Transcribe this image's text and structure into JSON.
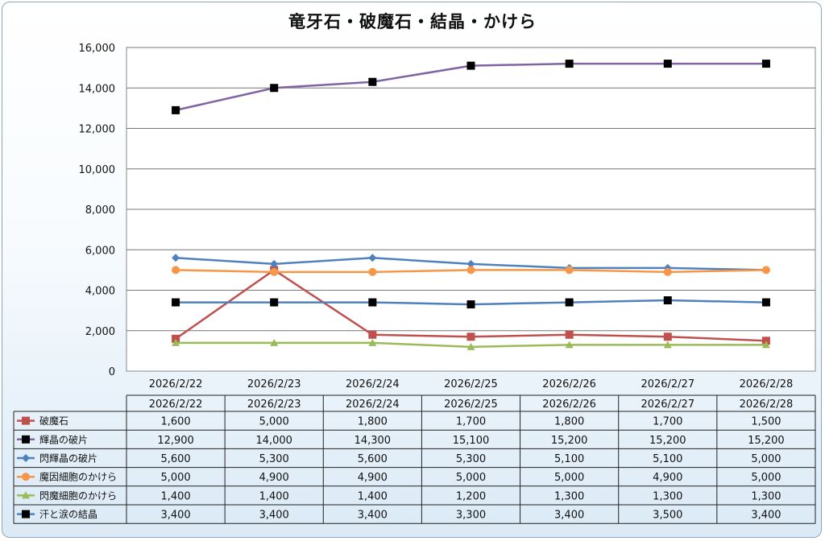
{
  "chart_data": {
    "type": "line",
    "title": "竜牙石・破魔石・結晶・かけら",
    "categories": [
      "2026/2/22",
      "2026/2/23",
      "2026/2/24",
      "2026/2/25",
      "2026/2/26",
      "2026/2/27",
      "2026/2/28"
    ],
    "y_tick_labels": [
      "0",
      "2,000",
      "4,000",
      "6,000",
      "8,000",
      "10,000",
      "12,000",
      "14,000",
      "16,000"
    ],
    "ylim": [
      0,
      16000
    ],
    "grid": true,
    "legend": "data-table-bottom",
    "series": [
      {
        "name": "破魔石",
        "color": "#c0504d",
        "marker": "square",
        "values": [
          1600,
          5000,
          1800,
          1700,
          1800,
          1700,
          1500
        ],
        "labels": [
          "1,600",
          "5,000",
          "1,800",
          "1,700",
          "1,800",
          "1,700",
          "1,500"
        ]
      },
      {
        "name": "輝晶の破片",
        "color": "#8064a2",
        "marker": "square-black",
        "values": [
          12900,
          14000,
          14300,
          15100,
          15200,
          15200,
          15200
        ],
        "labels": [
          "12,900",
          "14,000",
          "14,300",
          "15,100",
          "15,200",
          "15,200",
          "15,200"
        ]
      },
      {
        "name": "閃輝晶の破片",
        "color": "#4f81bd",
        "marker": "diamond",
        "values": [
          5600,
          5300,
          5600,
          5300,
          5100,
          5100,
          5000
        ],
        "labels": [
          "5,600",
          "5,300",
          "5,600",
          "5,300",
          "5,100",
          "5,100",
          "5,000"
        ]
      },
      {
        "name": "魔因細胞のかけら",
        "color": "#f79646",
        "marker": "circle",
        "values": [
          5000,
          4900,
          4900,
          5000,
          5000,
          4900,
          5000
        ],
        "labels": [
          "5,000",
          "4,900",
          "4,900",
          "5,000",
          "5,000",
          "4,900",
          "5,000"
        ]
      },
      {
        "name": "閃魔細胞のかけら",
        "color": "#9bbb59",
        "marker": "triangle",
        "values": [
          1400,
          1400,
          1400,
          1200,
          1300,
          1300,
          1300
        ],
        "labels": [
          "1,400",
          "1,400",
          "1,400",
          "1,200",
          "1,300",
          "1,300",
          "1,300"
        ]
      },
      {
        "name": "汗と涙の結晶",
        "color": "#4f81bd",
        "marker": "square-black",
        "values": [
          3400,
          3400,
          3400,
          3300,
          3400,
          3500,
          3400
        ],
        "labels": [
          "3,400",
          "3,400",
          "3,400",
          "3,300",
          "3,400",
          "3,500",
          "3,400"
        ]
      }
    ]
  }
}
